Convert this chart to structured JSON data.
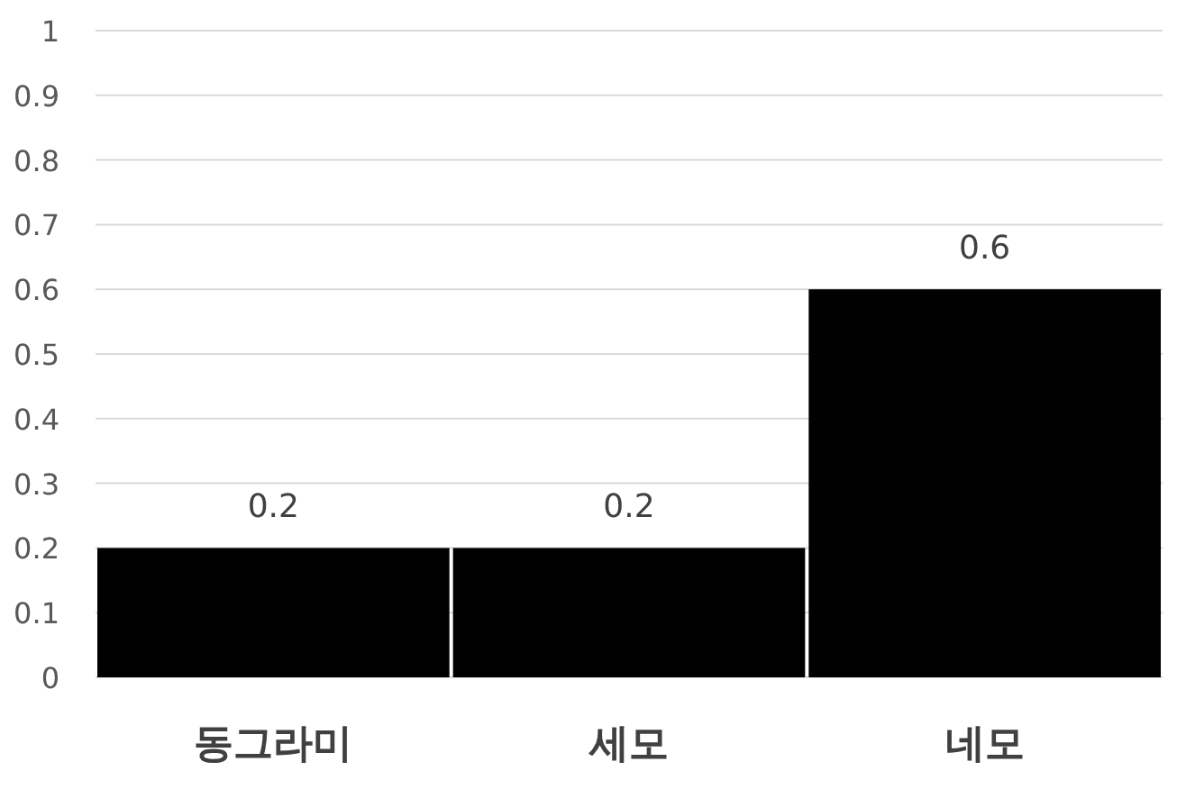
{
  "chart_data": {
    "type": "bar",
    "categories": [
      "동그라미",
      "세모",
      "네모"
    ],
    "values": [
      0.2,
      0.2,
      0.6
    ],
    "color": "#000000",
    "ylim": [
      0,
      1
    ],
    "yticks": [
      0,
      0.1,
      0.2,
      0.3,
      0.4,
      0.5,
      0.6,
      0.7,
      0.8,
      0.9,
      1
    ],
    "grid": "y",
    "data_labels": true
  }
}
